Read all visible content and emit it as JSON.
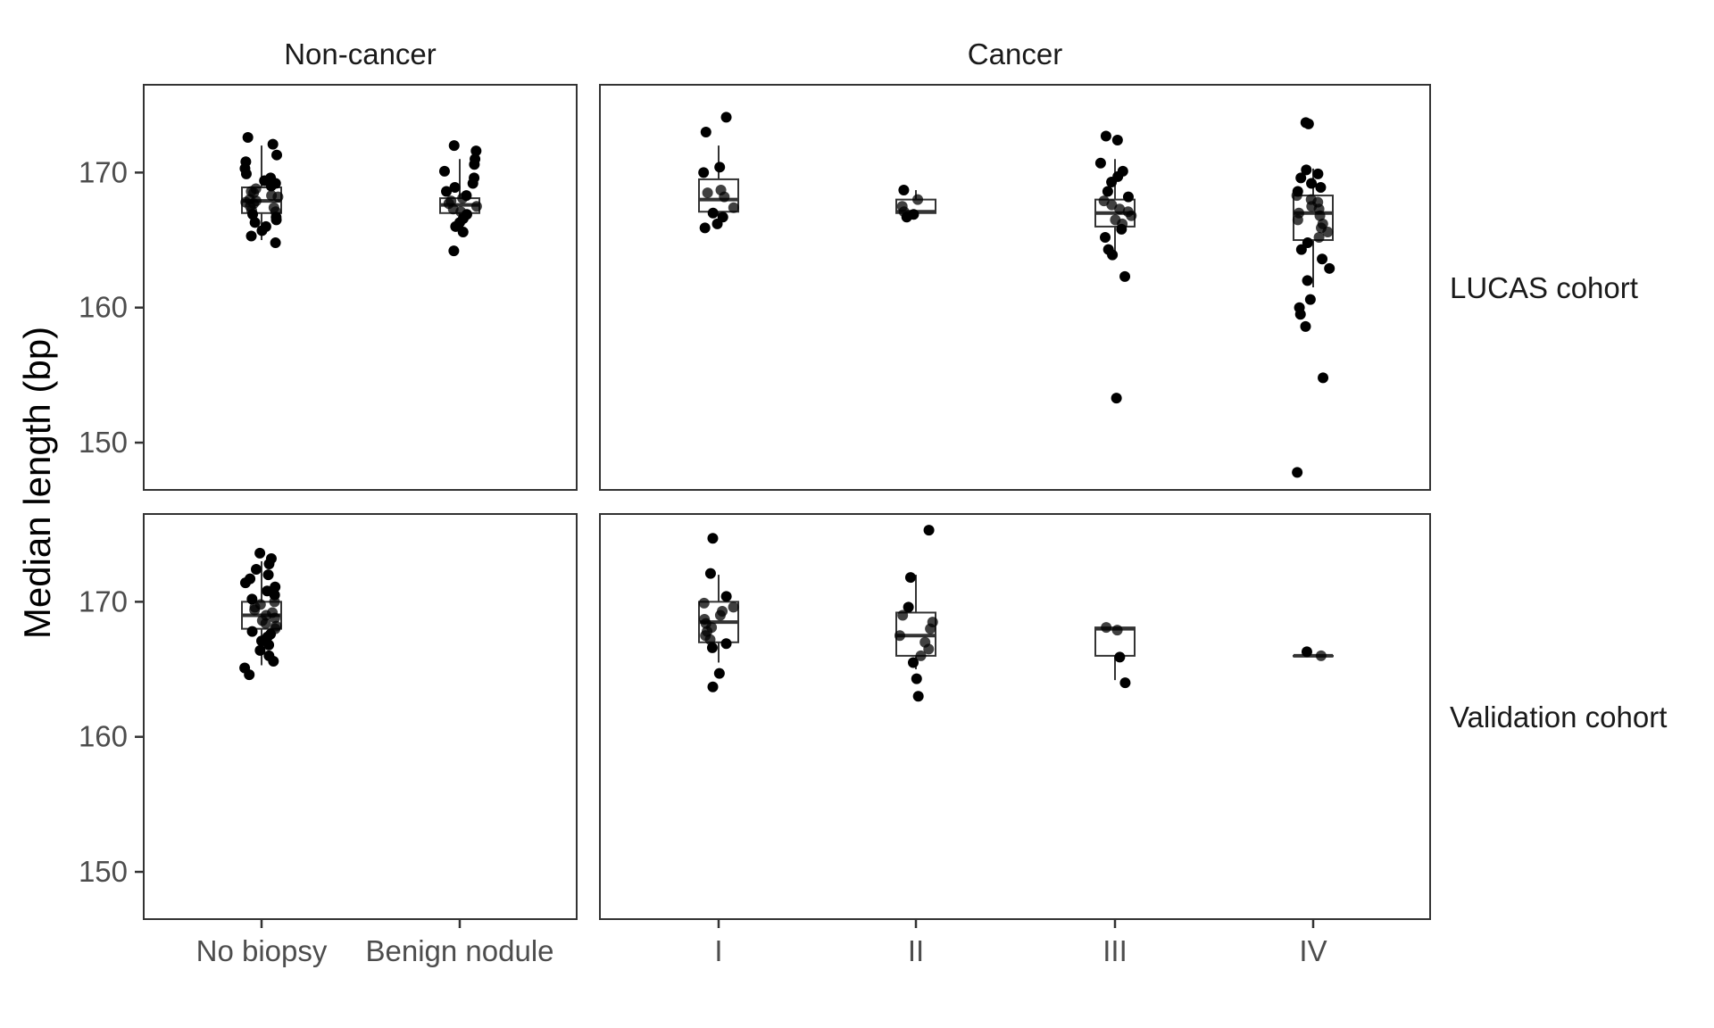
{
  "chart_data": {
    "type": "box",
    "ylabel": "Median length (bp)",
    "ylim": [
      146.5,
      176.5
    ],
    "yticks": [
      150,
      160,
      170
    ],
    "columns": [
      {
        "name": "Non-cancer",
        "categories": [
          "No biopsy",
          "Benign nodule"
        ]
      },
      {
        "name": "Cancer",
        "categories": [
          "I",
          "II",
          "III",
          "IV"
        ]
      }
    ],
    "rows": [
      {
        "name": "LUCAS cohort"
      },
      {
        "name": "Validation cohort"
      }
    ],
    "groups": [
      {
        "row": 0,
        "col": 0,
        "category": "No biopsy",
        "box": {
          "q1": 167.0,
          "median": 167.9,
          "q3": 168.9,
          "low": 165.0,
          "high": 172.0
        },
        "points": [
          172.6,
          172.1,
          171.3,
          170.8,
          170.3,
          169.9,
          169.6,
          169.4,
          169.2,
          169.0,
          168.8,
          168.6,
          168.5,
          168.3,
          168.2,
          168.0,
          167.9,
          167.8,
          167.7,
          167.5,
          167.4,
          167.2,
          167.1,
          166.9,
          166.7,
          166.5,
          166.3,
          166.0,
          165.7,
          165.3,
          164.8
        ]
      },
      {
        "row": 0,
        "col": 0,
        "category": "Benign nodule",
        "box": {
          "q1": 167.0,
          "median": 167.6,
          "q3": 168.1,
          "low": 165.6,
          "high": 171.0
        },
        "points": [
          172.0,
          171.6,
          171.0,
          170.6,
          170.1,
          169.6,
          169.2,
          168.9,
          168.6,
          168.3,
          168.1,
          167.9,
          167.7,
          167.5,
          167.3,
          167.1,
          166.9,
          166.6,
          166.3,
          166.0,
          165.6,
          164.2
        ]
      },
      {
        "row": 0,
        "col": 1,
        "category": "I",
        "box": {
          "q1": 167.1,
          "median": 168.0,
          "q3": 169.5,
          "low": 166.0,
          "high": 172.0
        },
        "points": [
          174.1,
          173.0,
          170.4,
          170.0,
          168.7,
          168.5,
          168.2,
          167.4,
          167.0,
          166.7,
          166.2,
          165.9
        ]
      },
      {
        "row": 0,
        "col": 1,
        "category": "II",
        "box": {
          "q1": 167.0,
          "median": 167.1,
          "q3": 168.0,
          "low": 166.7,
          "high": 168.7
        },
        "points": [
          168.7,
          168.0,
          167.5,
          167.1,
          166.9,
          166.7
        ]
      },
      {
        "row": 0,
        "col": 1,
        "category": "III",
        "box": {
          "q1": 166.0,
          "median": 167.0,
          "q3": 168.0,
          "low": 164.0,
          "high": 171.0
        },
        "points": [
          172.7,
          172.4,
          170.7,
          170.1,
          169.7,
          169.3,
          168.6,
          168.2,
          167.9,
          167.6,
          167.3,
          167.1,
          166.8,
          166.5,
          166.2,
          165.8,
          165.2,
          164.3,
          163.9,
          162.3,
          153.3
        ]
      },
      {
        "row": 0,
        "col": 1,
        "category": "IV",
        "box": {
          "q1": 165.0,
          "median": 167.0,
          "q3": 168.3,
          "low": 161.5,
          "high": 170.3
        },
        "points": [
          173.7,
          173.6,
          170.2,
          169.9,
          169.6,
          169.2,
          168.9,
          168.6,
          168.3,
          168.0,
          167.8,
          167.5,
          167.3,
          167.0,
          166.8,
          166.5,
          166.2,
          165.9,
          165.6,
          165.2,
          164.8,
          164.3,
          163.6,
          162.9,
          162.0,
          160.6,
          160.0,
          159.5,
          158.6,
          154.8,
          147.8
        ]
      },
      {
        "row": 1,
        "col": 0,
        "category": "No biopsy",
        "box": {
          "q1": 168.0,
          "median": 169.0,
          "q3": 170.0,
          "low": 165.3,
          "high": 173.0
        },
        "points": [
          173.6,
          173.2,
          172.8,
          172.4,
          172.0,
          171.7,
          171.4,
          171.1,
          170.8,
          170.5,
          170.2,
          170.0,
          169.8,
          169.6,
          169.4,
          169.2,
          169.0,
          168.8,
          168.6,
          168.4,
          168.2,
          168.0,
          167.8,
          167.6,
          167.4,
          167.1,
          166.8,
          166.4,
          166.0,
          165.6,
          165.1,
          164.6
        ]
      },
      {
        "row": 1,
        "col": 1,
        "category": "I",
        "box": {
          "q1": 167.0,
          "median": 168.5,
          "q3": 170.0,
          "low": 165.5,
          "high": 172.0
        },
        "points": [
          174.7,
          172.1,
          170.4,
          169.9,
          169.6,
          169.3,
          169.0,
          168.7,
          168.4,
          168.1,
          167.8,
          167.5,
          167.2,
          166.9,
          166.6,
          164.7,
          163.7
        ]
      },
      {
        "row": 1,
        "col": 1,
        "category": "II",
        "box": {
          "q1": 166.0,
          "median": 167.5,
          "q3": 169.2,
          "low": 165.0,
          "high": 172.0
        },
        "points": [
          175.3,
          171.8,
          169.6,
          169.0,
          168.5,
          168.0,
          167.5,
          167.0,
          166.5,
          166.0,
          165.5,
          164.3,
          163.0
        ]
      },
      {
        "row": 1,
        "col": 1,
        "category": "III",
        "box": {
          "q1": 166.0,
          "median": 168.0,
          "q3": 168.1,
          "low": 164.2,
          "high": 168.1
        },
        "points": [
          168.1,
          167.9,
          165.9,
          164.0
        ]
      },
      {
        "row": 1,
        "col": 1,
        "category": "IV",
        "box": {
          "q1": 166.0,
          "median": 166.0,
          "q3": 166.0,
          "low": 166.0,
          "high": 166.0
        },
        "points": [
          166.3,
          166.0
        ]
      }
    ]
  }
}
